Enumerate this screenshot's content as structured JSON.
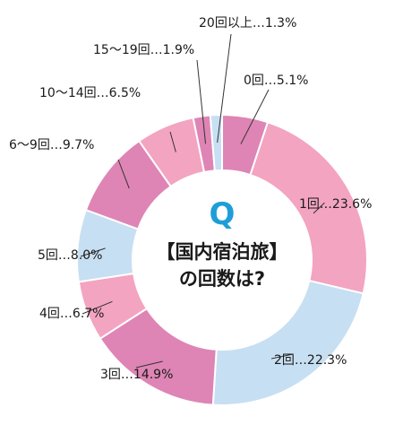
{
  "center": {
    "q_letter": "Q",
    "line1": "【国内宿泊旅】",
    "line2": "の回数は?"
  },
  "colors": {
    "pink_dark": "#de85b5",
    "pink_light": "#f3a4c0",
    "blue_light": "#c7dff2",
    "q_blue": "#1e9ed8",
    "leader": "#333333"
  },
  "chart_data": {
    "type": "pie",
    "donut": true,
    "slices": [
      {
        "category": "0回",
        "value": 5.1,
        "label": "0回…5.1%",
        "color": "#de85b5"
      },
      {
        "category": "1回",
        "value": 23.6,
        "label": "1回…23.6%",
        "color": "#f3a4c0"
      },
      {
        "category": "2回",
        "value": 22.3,
        "label": "2回…22.3%",
        "color": "#c7dff2"
      },
      {
        "category": "3回",
        "value": 14.9,
        "label": "3回…14.9%",
        "color": "#de85b5"
      },
      {
        "category": "4回",
        "value": 6.7,
        "label": "4回…6.7%",
        "color": "#f3a4c0"
      },
      {
        "category": "5回",
        "value": 8.0,
        "label": "5回…8.0%",
        "color": "#c7dff2"
      },
      {
        "category": "6～9回",
        "value": 9.7,
        "label": "6～9回…9.7%",
        "color": "#de85b5"
      },
      {
        "category": "10～14回",
        "value": 6.5,
        "label": "10～14回…6.5%",
        "color": "#f3a4c0"
      },
      {
        "category": "15～19回",
        "value": 1.9,
        "label": "15～19回…1.9%",
        "color": "#de85b5"
      },
      {
        "category": "20回以上",
        "value": 1.3,
        "label": "20回以上…1.3%",
        "color": "#c7dff2"
      }
    ]
  }
}
